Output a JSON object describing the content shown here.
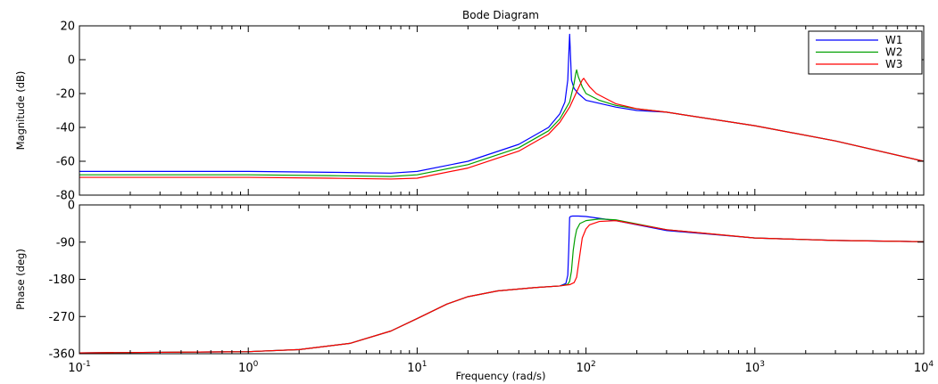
{
  "chart_data": {
    "title": "Bode Diagram",
    "type": "line",
    "xlabel": "Frequency  (rad/s)",
    "xscale": "log",
    "xlim": [
      0.1,
      10000
    ],
    "xticks": [
      {
        "v": 0.1,
        "base": "10",
        "exp": "-1"
      },
      {
        "v": 1,
        "base": "10",
        "exp": "0"
      },
      {
        "v": 10,
        "base": "10",
        "exp": "1"
      },
      {
        "v": 100,
        "base": "10",
        "exp": "2"
      },
      {
        "v": 1000,
        "base": "10",
        "exp": "3"
      },
      {
        "v": 10000,
        "base": "10",
        "exp": "4"
      }
    ],
    "grid": false,
    "legend": {
      "placement": "top-right",
      "entries": [
        "W1",
        "W2",
        "W3"
      ]
    },
    "panels": [
      {
        "name": "magnitude",
        "ylabel": "Magnitude (dB)",
        "ylim": [
          -80,
          20
        ],
        "yticks": [
          20,
          0,
          -20,
          -40,
          -60,
          -80
        ],
        "series": [
          {
            "name": "W1",
            "color": "#0000ff",
            "x": [
              0.1,
              1,
              3,
              7,
              10,
              20,
              40,
              60,
              70,
              75,
              78,
              79,
              80,
              81,
              82,
              85,
              90,
              100,
              150,
              200,
              300,
              1000,
              3000,
              10000
            ],
            "y": [
              -66,
              -66,
              -66.5,
              -67,
              -66,
              -60,
              -50,
              -40,
              -32,
              -25,
              -12,
              2,
              15,
              2,
              -12,
              -17,
              -20,
              -24,
              -28,
              -30,
              -31,
              -39,
              -48,
              -60
            ]
          },
          {
            "name": "W2",
            "color": "#00a000",
            "x": [
              0.1,
              1,
              3,
              7,
              10,
              20,
              40,
              60,
              70,
              80,
              85,
              87,
              88,
              90,
              95,
              100,
              120,
              150,
              200,
              300,
              1000,
              3000,
              10000
            ],
            "y": [
              -68,
              -68,
              -68.5,
              -69,
              -68,
              -62,
              -52,
              -42,
              -35,
              -25,
              -14,
              -8,
              -6,
              -10,
              -16,
              -20,
              -24,
              -27,
              -29,
              -31,
              -39,
              -48,
              -60
            ]
          },
          {
            "name": "W3",
            "color": "#ff0000",
            "x": [
              0.1,
              1,
              3,
              7,
              10,
              20,
              40,
              60,
              70,
              80,
              90,
              95,
              97,
              100,
              105,
              115,
              150,
              200,
              300,
              1000,
              3000,
              10000
            ],
            "y": [
              -69.5,
              -69.5,
              -70,
              -70.5,
              -70,
              -64,
              -54,
              -44,
              -37,
              -28,
              -17,
              -12,
              -11,
              -13,
              -16,
              -20,
              -26,
              -29,
              -31,
              -39,
              -48,
              -60
            ]
          }
        ]
      },
      {
        "name": "phase",
        "ylabel": "Phase (deg)",
        "ylim": [
          -360,
          0
        ],
        "yticks": [
          0,
          -90,
          -180,
          -270,
          -360
        ],
        "series": [
          {
            "name": "W1",
            "color": "#0000ff",
            "x": [
              0.1,
              1,
              2,
              4,
              7,
              10,
              15,
              20,
              30,
              50,
              70,
              76,
              78,
              79,
              80,
              81,
              83,
              90,
              100,
              150,
              300,
              1000,
              3000,
              10000
            ],
            "y": [
              -358,
              -355,
              -350,
              -335,
              -305,
              -275,
              -240,
              -222,
              -208,
              -200,
              -196,
              -190,
              -170,
              -110,
              -30,
              -28,
              -27,
              -27,
              -28,
              -38,
              -62,
              -80,
              -86,
              -89
            ]
          },
          {
            "name": "W2",
            "color": "#00a000",
            "x": [
              0.1,
              1,
              2,
              4,
              7,
              10,
              15,
              20,
              30,
              50,
              70,
              78,
              80,
              82,
              84,
              86,
              88,
              92,
              100,
              120,
              150,
              300,
              1000,
              3000,
              10000
            ],
            "y": [
              -358,
              -355,
              -350,
              -335,
              -305,
              -275,
              -240,
              -222,
              -208,
              -200,
              -196,
              -192,
              -185,
              -160,
              -110,
              -80,
              -60,
              -45,
              -38,
              -34,
              -36,
              -60,
              -80,
              -86,
              -89
            ]
          },
          {
            "name": "W3",
            "color": "#ff0000",
            "x": [
              0.1,
              1,
              2,
              4,
              7,
              10,
              15,
              20,
              30,
              50,
              70,
              80,
              85,
              88,
              92,
              95,
              100,
              105,
              120,
              150,
              300,
              1000,
              3000,
              10000
            ],
            "y": [
              -358,
              -355,
              -350,
              -335,
              -305,
              -275,
              -240,
              -222,
              -208,
              -200,
              -196,
              -193,
              -188,
              -175,
              -120,
              -80,
              -58,
              -48,
              -40,
              -38,
              -60,
              -80,
              -86,
              -89
            ]
          }
        ]
      }
    ]
  }
}
